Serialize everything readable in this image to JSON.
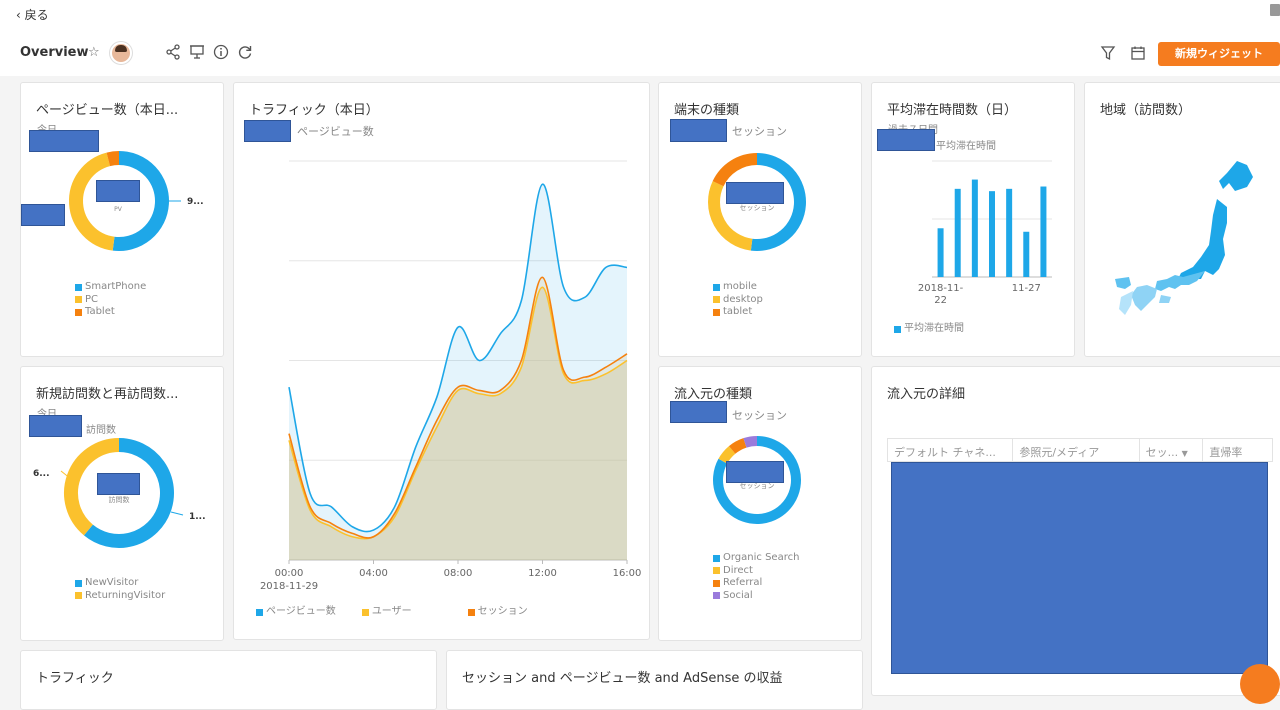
{
  "topbar": {
    "back_label": "戻る",
    "title": "Overview",
    "new_widget_label": "新規ウィジェット"
  },
  "colors": {
    "blue": "#1ea7e8",
    "yellow": "#fbc12d",
    "orange": "#f5810f",
    "purple": "#9a7bdc",
    "accent": "#f57c1f"
  },
  "widgets": {
    "pageviews": {
      "title": "ページビュー数（本日...",
      "period": "今日",
      "center_label": "PV",
      "right_value": "9...",
      "legend": [
        "SmartPhone",
        "PC",
        "Tablet"
      ]
    },
    "traffic_today": {
      "title": "トラフィック（本日）",
      "subtitle": "ページビュー数",
      "legend": [
        "ページビュー数",
        "ユーザー",
        "セッション"
      ]
    },
    "device": {
      "title": "端末の種類",
      "subtitle": "セッション",
      "center_label": "セッション",
      "legend": [
        "mobile",
        "desktop",
        "tablet"
      ]
    },
    "avg_time": {
      "title": "平均滞在時間数（日）",
      "period": "過去７日間",
      "subtitle": "平均滞在時間",
      "legend": "平均滞在時間"
    },
    "region": {
      "title": "地域（訪問数）"
    },
    "new_return": {
      "title": "新規訪問数と再訪問数...",
      "period": "今日",
      "subtitle": "訪問数",
      "center_label": "訪問数",
      "left_value": "6...",
      "right_value": "1...",
      "legend": [
        "NewVisitor",
        "ReturningVisitor"
      ]
    },
    "source_type": {
      "title": "流入元の種類",
      "subtitle": "セッション",
      "center_label": "セッション",
      "legend": [
        "Organic Search",
        "Direct",
        "Referral",
        "Social"
      ]
    },
    "source_detail": {
      "title": "流入元の詳細",
      "columns": [
        "デフォルト チャネ...",
        "参照元/メディア",
        "セッ...",
        "直帰率"
      ]
    },
    "traffic": {
      "title": "トラフィック"
    },
    "session_pv_adsense": {
      "title": "セッション and ページビュー数 and AdSense の収益"
    }
  },
  "chart_data": [
    {
      "type": "pie",
      "labels": [
        "SmartPhone",
        "PC",
        "Tablet"
      ],
      "values": [
        52,
        44,
        4
      ]
    },
    {
      "type": "area",
      "x": [
        "00:00",
        "01:00",
        "02:00",
        "03:00",
        "04:00",
        "05:00",
        "06:00",
        "07:00",
        "08:00",
        "09:00",
        "10:00",
        "11:00",
        "12:00",
        "13:00",
        "14:00",
        "15:00",
        "16:00"
      ],
      "x_ticks": [
        "00:00",
        "04:00",
        "08:00",
        "12:00",
        "16:00"
      ],
      "x_first_date": "2018-11-29",
      "series": [
        {
          "name": "ページビュー数",
          "values": [
            52,
            20,
            16,
            10,
            9,
            16,
            34,
            49,
            70,
            60,
            68,
            78,
            113,
            82,
            79,
            88,
            88
          ]
        },
        {
          "name": "ユーザー",
          "values": [
            36,
            15,
            10,
            7,
            7,
            13,
            27,
            40,
            51,
            50,
            50,
            58,
            82,
            56,
            54,
            56,
            60
          ]
        },
        {
          "name": "セッション",
          "values": [
            38,
            16,
            11,
            8,
            7,
            14,
            28,
            42,
            52,
            51,
            51,
            60,
            85,
            57,
            55,
            58,
            62
          ]
        }
      ]
    },
    {
      "type": "pie",
      "labels": [
        "mobile",
        "desktop",
        "tablet"
      ],
      "values": [
        52,
        30,
        18
      ]
    },
    {
      "type": "bar",
      "categories": [
        "2018-11-22",
        "2018-11-23",
        "2018-11-24",
        "2018-11-25",
        "2018-11-26",
        "2018-11-27",
        "2018-11-28"
      ],
      "x_ticks": [
        "2018-11-22",
        "11-27"
      ],
      "values": [
        42,
        76,
        84,
        74,
        76,
        39,
        78
      ]
    },
    {
      "type": "pie",
      "labels": [
        "NewVisitor",
        "ReturningVisitor"
      ],
      "values": [
        61,
        39
      ]
    },
    {
      "type": "pie",
      "labels": [
        "Organic Search",
        "Direct",
        "Referral",
        "Social"
      ],
      "values": [
        83,
        6,
        6,
        5
      ]
    }
  ]
}
